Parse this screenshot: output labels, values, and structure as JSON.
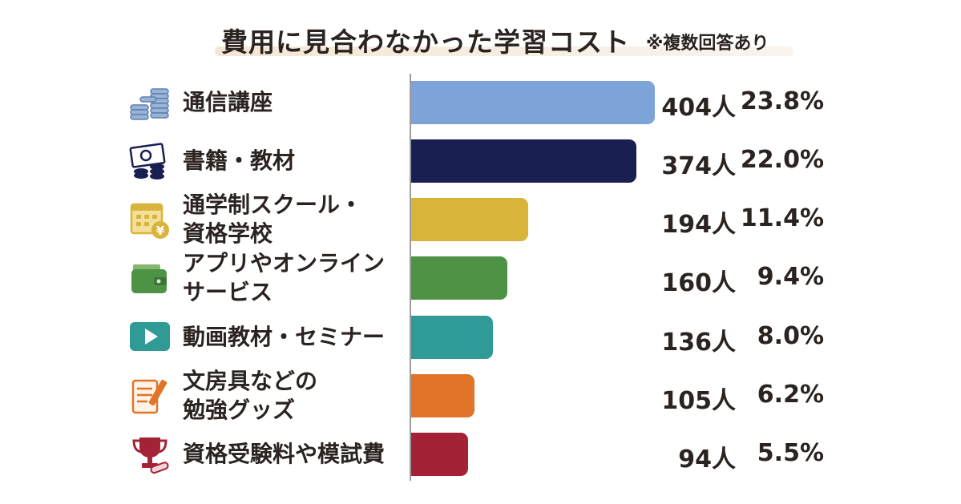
{
  "header": {
    "title": "費用に見合わなかった学習コスト",
    "note": "※複数回答あり"
  },
  "chart_data": {
    "type": "bar",
    "orientation": "horizontal",
    "categories": [
      "通信講座",
      "書籍・教材",
      "通学制スクール・資格学校",
      "アプリやオンラインサービス",
      "動画教材・セミナー",
      "文房具などの勉強グッズ",
      "資格受験料や模試費"
    ],
    "display_labels": [
      "通信講座",
      "書籍・教材",
      "通学制スクール・\n資格学校",
      "アプリやオンライン\nサービス",
      "動画教材・セミナー",
      "文房具などの\n勉強グッズ",
      "資格受験料や模試費"
    ],
    "values": [
      404,
      374,
      194,
      160,
      136,
      105,
      94
    ],
    "count_labels": [
      "404人",
      "374人",
      "194人",
      "160人",
      "136人",
      "105人",
      "94人"
    ],
    "percent_labels": [
      "23.8%",
      "22.0%",
      "11.4%",
      "9.4%",
      "8.0%",
      "6.2%",
      "5.5%"
    ],
    "colors": [
      "#7da4d8",
      "#1a1f52",
      "#d9b43a",
      "#4e9246",
      "#2f9a96",
      "#e07429",
      "#a32236"
    ],
    "icons": [
      "coins-icon",
      "money-icon",
      "calendar-yen-icon",
      "wallet-icon",
      "play-icon",
      "notepad-pencil-icon",
      "trophy-icon"
    ],
    "xlim": [
      0,
      404
    ],
    "grid": false,
    "legend": "none"
  }
}
